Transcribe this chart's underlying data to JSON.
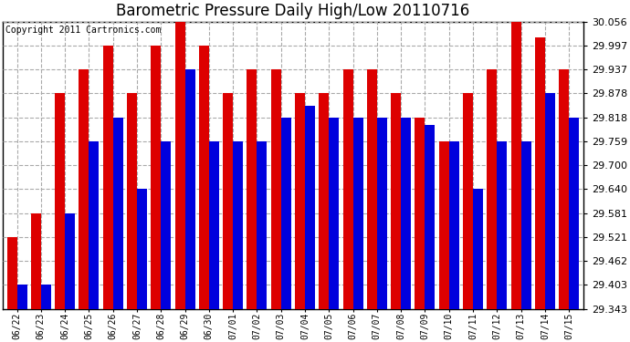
{
  "title": "Barometric Pressure Daily High/Low 20110716",
  "copyright": "Copyright 2011 Cartronics.com",
  "dates": [
    "06/22",
    "06/23",
    "06/24",
    "06/25",
    "06/26",
    "06/27",
    "06/28",
    "06/29",
    "06/30",
    "07/01",
    "07/02",
    "07/03",
    "07/04",
    "07/05",
    "07/06",
    "07/07",
    "07/08",
    "07/09",
    "07/10",
    "07/11",
    "07/12",
    "07/13",
    "07/14",
    "07/15"
  ],
  "highs": [
    29.521,
    29.58,
    29.878,
    29.937,
    29.997,
    29.878,
    29.997,
    30.056,
    29.997,
    29.878,
    29.937,
    29.937,
    29.878,
    29.878,
    29.937,
    29.937,
    29.878,
    29.818,
    29.759,
    29.878,
    29.937,
    30.056,
    30.017,
    29.937
  ],
  "lows": [
    29.403,
    29.403,
    29.58,
    29.759,
    29.818,
    29.64,
    29.759,
    29.937,
    29.759,
    29.759,
    29.759,
    29.818,
    29.848,
    29.818,
    29.818,
    29.818,
    29.818,
    29.8,
    29.759,
    29.64,
    29.759,
    29.759,
    29.878,
    29.818
  ],
  "ymin": 29.343,
  "ymax": 30.056,
  "yticks": [
    29.343,
    29.403,
    29.462,
    29.521,
    29.581,
    29.64,
    29.7,
    29.759,
    29.818,
    29.878,
    29.937,
    29.997,
    30.056
  ],
  "high_color": "#dd0000",
  "low_color": "#0000dd",
  "bg_color": "#ffffff",
  "grid_color": "#aaaaaa",
  "title_fontsize": 12,
  "copyright_fontsize": 7
}
